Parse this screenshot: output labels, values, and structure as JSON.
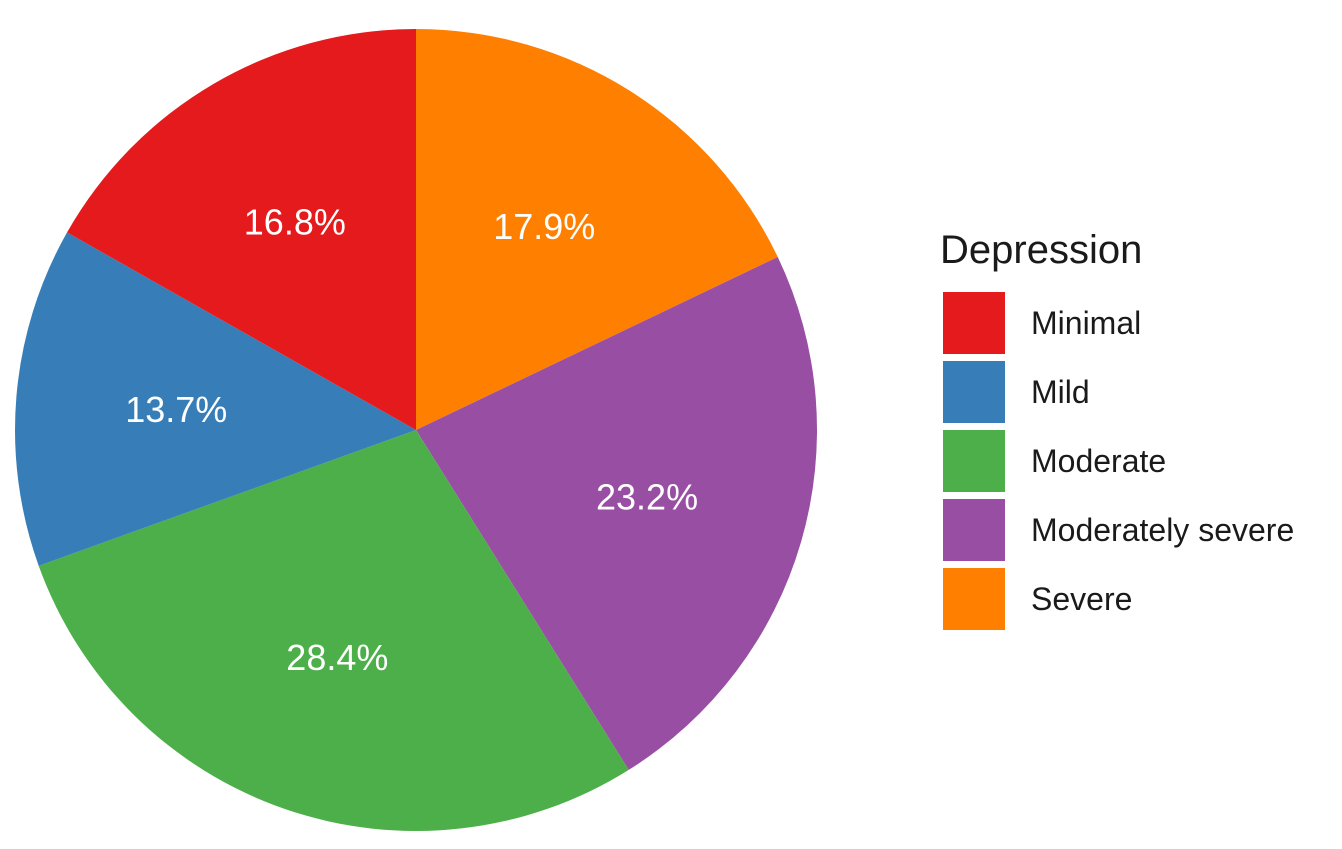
{
  "chart_data": {
    "type": "pie",
    "legend_title": "Depression",
    "legend_position": "right",
    "start": "12 o'clock",
    "direction": "clockwise",
    "slices": [
      {
        "category": "Severe",
        "value": 17.9,
        "label": "17.9%",
        "color": "#FF7F00"
      },
      {
        "category": "Moderately severe",
        "value": 23.2,
        "label": "23.2%",
        "color": "#984EA3"
      },
      {
        "category": "Moderate",
        "value": 28.4,
        "label": "28.4%",
        "color": "#4DAF4A"
      },
      {
        "category": "Mild",
        "value": 13.7,
        "label": "13.7%",
        "color": "#377EB8"
      },
      {
        "category": "Minimal",
        "value": 16.8,
        "label": "16.8%",
        "color": "#E41A1C"
      }
    ],
    "legend_order": [
      "Minimal",
      "Mild",
      "Moderate",
      "Moderately severe",
      "Severe"
    ]
  }
}
